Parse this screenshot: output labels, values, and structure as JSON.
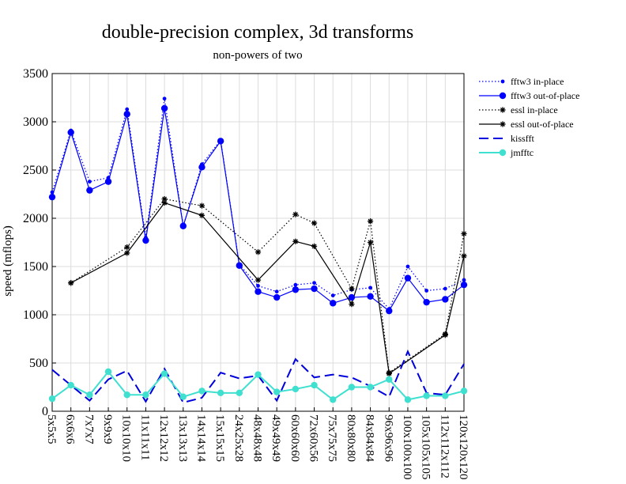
{
  "chart_data": {
    "type": "line",
    "title": "double-precision complex, 3d transforms",
    "subtitle": "non-powers of two",
    "ylabel": "speed (mflops)",
    "xlabel": "",
    "ylim": [
      0,
      3500
    ],
    "yticks": [
      0,
      500,
      1000,
      1500,
      2000,
      2500,
      3000,
      3500
    ],
    "grid": true,
    "legend_position": "top-right",
    "categories": [
      "5x5x5",
      "6x6x6",
      "7x7x7",
      "9x9x9",
      "10x10x10",
      "11x11x11",
      "12x12x12",
      "13x13x13",
      "14x14x14",
      "15x15x15",
      "24x25x28",
      "48x48x48",
      "49x49x49",
      "60x60x60",
      "72x60x56",
      "75x75x75",
      "80x80x80",
      "84x84x84",
      "96x96x96",
      "100x100x100",
      "105x105x105",
      "112x112x112",
      "120x120x120"
    ],
    "series": [
      {
        "name": "fftw3 in-place",
        "color": "#0000ff",
        "style": "dotted",
        "marker": "small-dot",
        "values": [
          2270,
          2910,
          2380,
          2420,
          3130,
          1800,
          3240,
          1920,
          2560,
          2810,
          1520,
          1300,
          1240,
          1310,
          1330,
          1200,
          1260,
          1280,
          1060,
          1500,
          1250,
          1270,
          1360
        ]
      },
      {
        "name": "fftw3 out-of-place",
        "color": "#0000ff",
        "style": "solid",
        "marker": "big-dot",
        "values": [
          2220,
          2890,
          2290,
          2380,
          3080,
          1770,
          3140,
          1920,
          2530,
          2800,
          1510,
          1240,
          1180,
          1260,
          1270,
          1120,
          1180,
          1190,
          1040,
          1380,
          1130,
          1160,
          1310
        ]
      },
      {
        "name": "essl in-place",
        "color": "#000000",
        "style": "dotted",
        "marker": "star",
        "values": [
          null,
          1330,
          null,
          null,
          1700,
          null,
          2200,
          null,
          2130,
          null,
          null,
          1650,
          null,
          2040,
          1950,
          null,
          1270,
          1970,
          400,
          null,
          null,
          800,
          1840
        ]
      },
      {
        "name": "essl out-of-place",
        "color": "#000000",
        "style": "solid",
        "marker": "star",
        "values": [
          null,
          1330,
          null,
          null,
          1640,
          null,
          2160,
          null,
          2030,
          null,
          null,
          1360,
          null,
          1760,
          1710,
          null,
          1110,
          1750,
          390,
          null,
          null,
          790,
          1610
        ]
      },
      {
        "name": "kissfft",
        "color": "#0000dd",
        "style": "dashed",
        "marker": "none",
        "values": [
          430,
          270,
          110,
          330,
          420,
          100,
          440,
          90,
          140,
          400,
          340,
          370,
          110,
          540,
          350,
          380,
          350,
          260,
          150,
          620,
          190,
          170,
          490
        ]
      },
      {
        "name": "jmfftc",
        "color": "#40e0d0",
        "style": "solid",
        "marker": "big-dot",
        "values": [
          130,
          270,
          170,
          410,
          170,
          170,
          390,
          150,
          210,
          190,
          190,
          380,
          200,
          230,
          270,
          120,
          250,
          250,
          330,
          120,
          160,
          160,
          210
        ]
      }
    ]
  }
}
